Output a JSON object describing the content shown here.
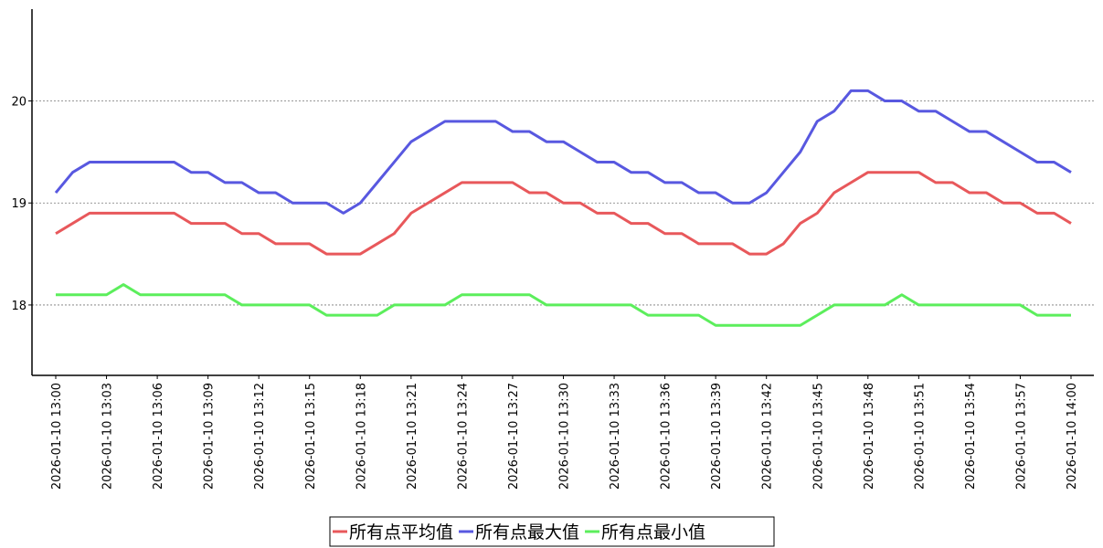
{
  "chart_data": {
    "type": "line",
    "categories": [
      "2026-01-10 13:00",
      null,
      null,
      "2026-01-10 13:03",
      null,
      null,
      "2026-01-10 13:06",
      null,
      null,
      "2026-01-10 13:09",
      null,
      null,
      "2026-01-10 13:12",
      null,
      null,
      "2026-01-10 13:15",
      null,
      null,
      "2026-01-10 13:18",
      null,
      null,
      "2026-01-10 13:21",
      null,
      null,
      "2026-01-10 13:24",
      null,
      null,
      "2026-01-10 13:27",
      null,
      null,
      "2026-01-10 13:30",
      null,
      null,
      "2026-01-10 13:33",
      null,
      null,
      "2026-01-10 13:36",
      null,
      null,
      "2026-01-10 13:39",
      null,
      null,
      "2026-01-10 13:42",
      null,
      null,
      "2026-01-10 13:45",
      null,
      null,
      "2026-01-10 13:48",
      null,
      null,
      "2026-01-10 13:51",
      null,
      null,
      "2026-01-10 13:54",
      null,
      null,
      "2026-01-10 13:57",
      null,
      null,
      "2026-01-10 14:00"
    ],
    "series": [
      {
        "name": "所有点平均值",
        "color": "#e8585b",
        "values": [
          18.7,
          18.8,
          18.9,
          18.9,
          18.9,
          18.9,
          18.9,
          18.9,
          18.8,
          18.8,
          18.8,
          18.7,
          18.7,
          18.6,
          18.6,
          18.6,
          18.5,
          18.5,
          18.5,
          18.6,
          18.7,
          18.9,
          19.0,
          19.1,
          19.2,
          19.2,
          19.2,
          19.2,
          19.1,
          19.1,
          19.0,
          19.0,
          18.9,
          18.9,
          18.8,
          18.8,
          18.7,
          18.7,
          18.6,
          18.6,
          18.6,
          18.5,
          18.5,
          18.6,
          18.8,
          18.9,
          19.1,
          19.2,
          19.3,
          19.3,
          19.3,
          19.3,
          19.2,
          19.2,
          19.1,
          19.1,
          19.0,
          19.0,
          18.9,
          18.9,
          18.8
        ]
      },
      {
        "name": "所有点最大值",
        "color": "#5858e0",
        "values": [
          19.1,
          19.3,
          19.4,
          19.4,
          19.4,
          19.4,
          19.4,
          19.4,
          19.3,
          19.3,
          19.2,
          19.2,
          19.1,
          19.1,
          19.0,
          19.0,
          19.0,
          18.9,
          19.0,
          19.2,
          19.4,
          19.6,
          19.7,
          19.8,
          19.8,
          19.8,
          19.8,
          19.7,
          19.7,
          19.6,
          19.6,
          19.5,
          19.4,
          19.4,
          19.3,
          19.3,
          19.2,
          19.2,
          19.1,
          19.1,
          19.0,
          19.0,
          19.1,
          19.3,
          19.5,
          19.8,
          19.9,
          20.1,
          20.1,
          20.0,
          20.0,
          19.9,
          19.9,
          19.8,
          19.7,
          19.7,
          19.6,
          19.5,
          19.4,
          19.4,
          19.3
        ]
      },
      {
        "name": "所有点最小值",
        "color": "#5cee5c",
        "values": [
          18.1,
          18.1,
          18.1,
          18.1,
          18.2,
          18.1,
          18.1,
          18.1,
          18.1,
          18.1,
          18.1,
          18.0,
          18.0,
          18.0,
          18.0,
          18.0,
          17.9,
          17.9,
          17.9,
          17.9,
          18.0,
          18.0,
          18.0,
          18.0,
          18.1,
          18.1,
          18.1,
          18.1,
          18.1,
          18.0,
          18.0,
          18.0,
          18.0,
          18.0,
          18.0,
          17.9,
          17.9,
          17.9,
          17.9,
          17.8,
          17.8,
          17.8,
          17.8,
          17.8,
          17.8,
          17.9,
          18.0,
          18.0,
          18.0,
          18.0,
          18.1,
          18.0,
          18.0,
          18.0,
          18.0,
          18.0,
          18.0,
          18.0,
          17.9,
          17.9,
          17.9
        ]
      }
    ],
    "ylim": [
      17.31,
      20.9
    ],
    "yticks": [
      18,
      19,
      20
    ],
    "grid": true
  }
}
